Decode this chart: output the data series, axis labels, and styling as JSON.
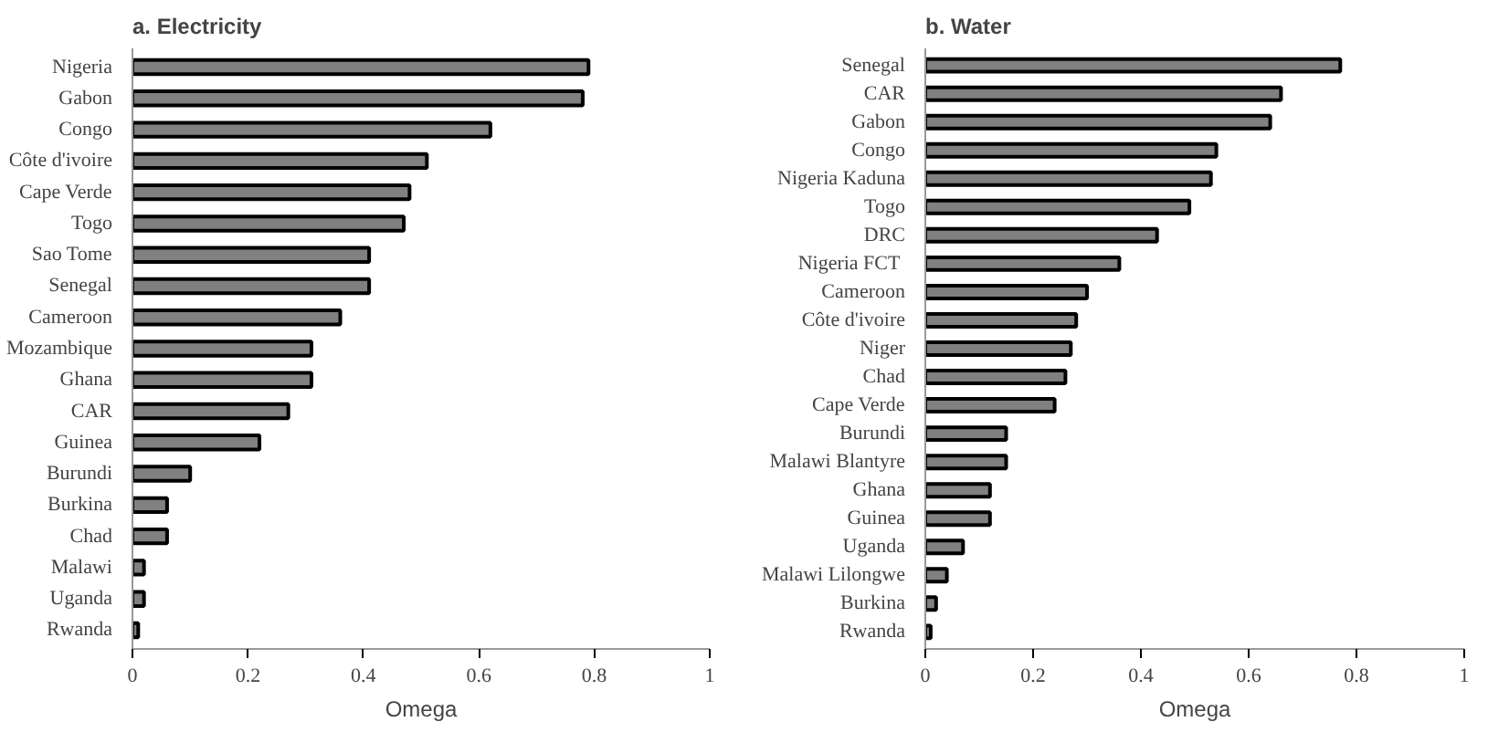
{
  "chart_data": [
    {
      "type": "bar",
      "orientation": "horizontal",
      "title": "a. Electricity",
      "xlabel": "Omega",
      "color": "#808080",
      "grid": false,
      "categories": [
        "Nigeria",
        "Gabon",
        "Congo",
        "Côte d'ivoire",
        "Cape Verde",
        "Togo",
        "Sao Tome",
        "Senegal",
        "Cameroon",
        "Mozambique",
        "Ghana",
        "CAR",
        "Guinea",
        "Burundi",
        "Burkina",
        "Chad",
        "Malawi",
        "Uganda",
        "Rwanda"
      ],
      "values": [
        0.79,
        0.78,
        0.62,
        0.51,
        0.48,
        0.47,
        0.41,
        0.41,
        0.36,
        0.31,
        0.31,
        0.27,
        0.22,
        0.1,
        0.06,
        0.06,
        0.02,
        0.02,
        0.01
      ],
      "xlim": [
        0,
        1
      ],
      "xticks": [
        0,
        0.2,
        0.4,
        0.6,
        0.8,
        1
      ]
    },
    {
      "type": "bar",
      "orientation": "horizontal",
      "title": "b. Water",
      "xlabel": "Omega",
      "color": "#808080",
      "grid": false,
      "categories": [
        "Senegal",
        "CAR",
        "Gabon",
        "Congo",
        "Nigeria Kaduna",
        "Togo",
        "DRC",
        "Nigeria  FCT",
        "Cameroon",
        "Côte d'ivoire",
        "Niger",
        "Chad",
        "Cape Verde",
        "Burundi",
        "Malawi Blantyre",
        "Ghana",
        "Guinea",
        "Uganda",
        "Malawi Lilongwe",
        "Burkina",
        "Rwanda"
      ],
      "values": [
        0.77,
        0.66,
        0.64,
        0.54,
        0.53,
        0.49,
        0.43,
        0.36,
        0.3,
        0.28,
        0.27,
        0.26,
        0.24,
        0.15,
        0.15,
        0.12,
        0.12,
        0.07,
        0.04,
        0.02,
        0.01
      ],
      "xlim": [
        0,
        1
      ],
      "xticks": [
        0,
        0.2,
        0.4,
        0.6,
        0.8,
        1
      ]
    }
  ]
}
